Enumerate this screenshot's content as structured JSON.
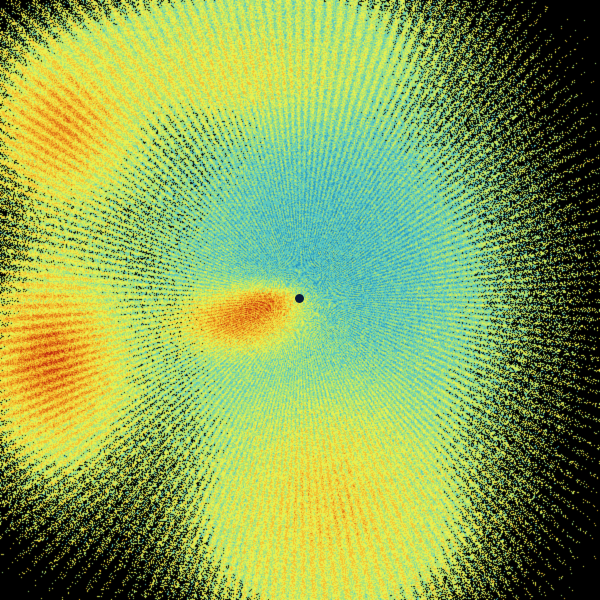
{
  "background_color": "#000000",
  "palette": [
    "#1565a0",
    "#2e9cc0",
    "#5cc8c0",
    "#a8e27a",
    "#e8f050",
    "#f4c030",
    "#e07818",
    "#c02810"
  ],
  "radar_site_icon": "radar-site-dot"
}
